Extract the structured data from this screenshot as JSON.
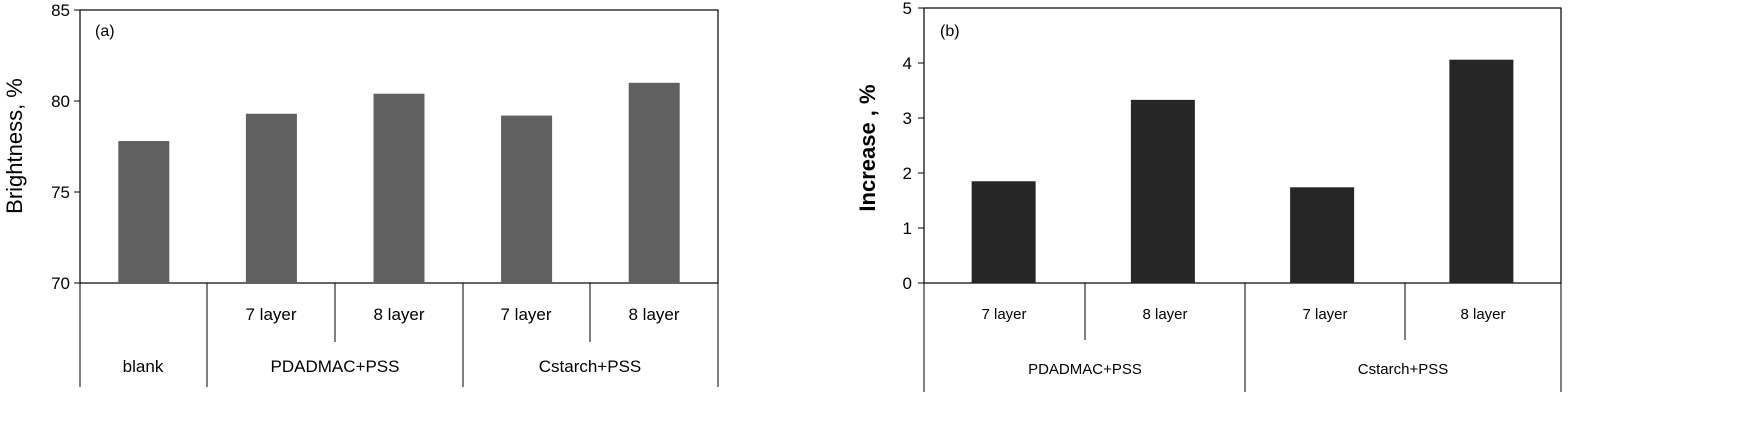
{
  "chart_data": [
    {
      "type": "bar",
      "panel_label": "(a)",
      "ylabel": "Brightness, %",
      "ylim": [
        70,
        85
      ],
      "yticks": [
        "70",
        "75",
        "80",
        "85"
      ],
      "categories": [
        "blank",
        "7 layer",
        "8 layer",
        "7 layer",
        "8 layer"
      ],
      "groups": [
        "blank",
        "PDADMAC+PSS",
        "Cstarch+PSS"
      ],
      "values": [
        77.8,
        79.3,
        80.4,
        79.2,
        81.0
      ],
      "bar_color": "#606060"
    },
    {
      "type": "bar",
      "panel_label": "(b)",
      "ylabel": "Increase , %",
      "ylim": [
        0,
        5
      ],
      "yticks": [
        "0",
        "1",
        "2",
        "3",
        "4",
        "5"
      ],
      "categories": [
        "7 layer",
        "8 layer",
        "7 layer",
        "8 layer"
      ],
      "groups": [
        "PDADMAC+PSS",
        "Cstarch+PSS"
      ],
      "values": [
        1.85,
        3.33,
        1.74,
        4.06
      ],
      "bar_color": "#262626"
    }
  ]
}
